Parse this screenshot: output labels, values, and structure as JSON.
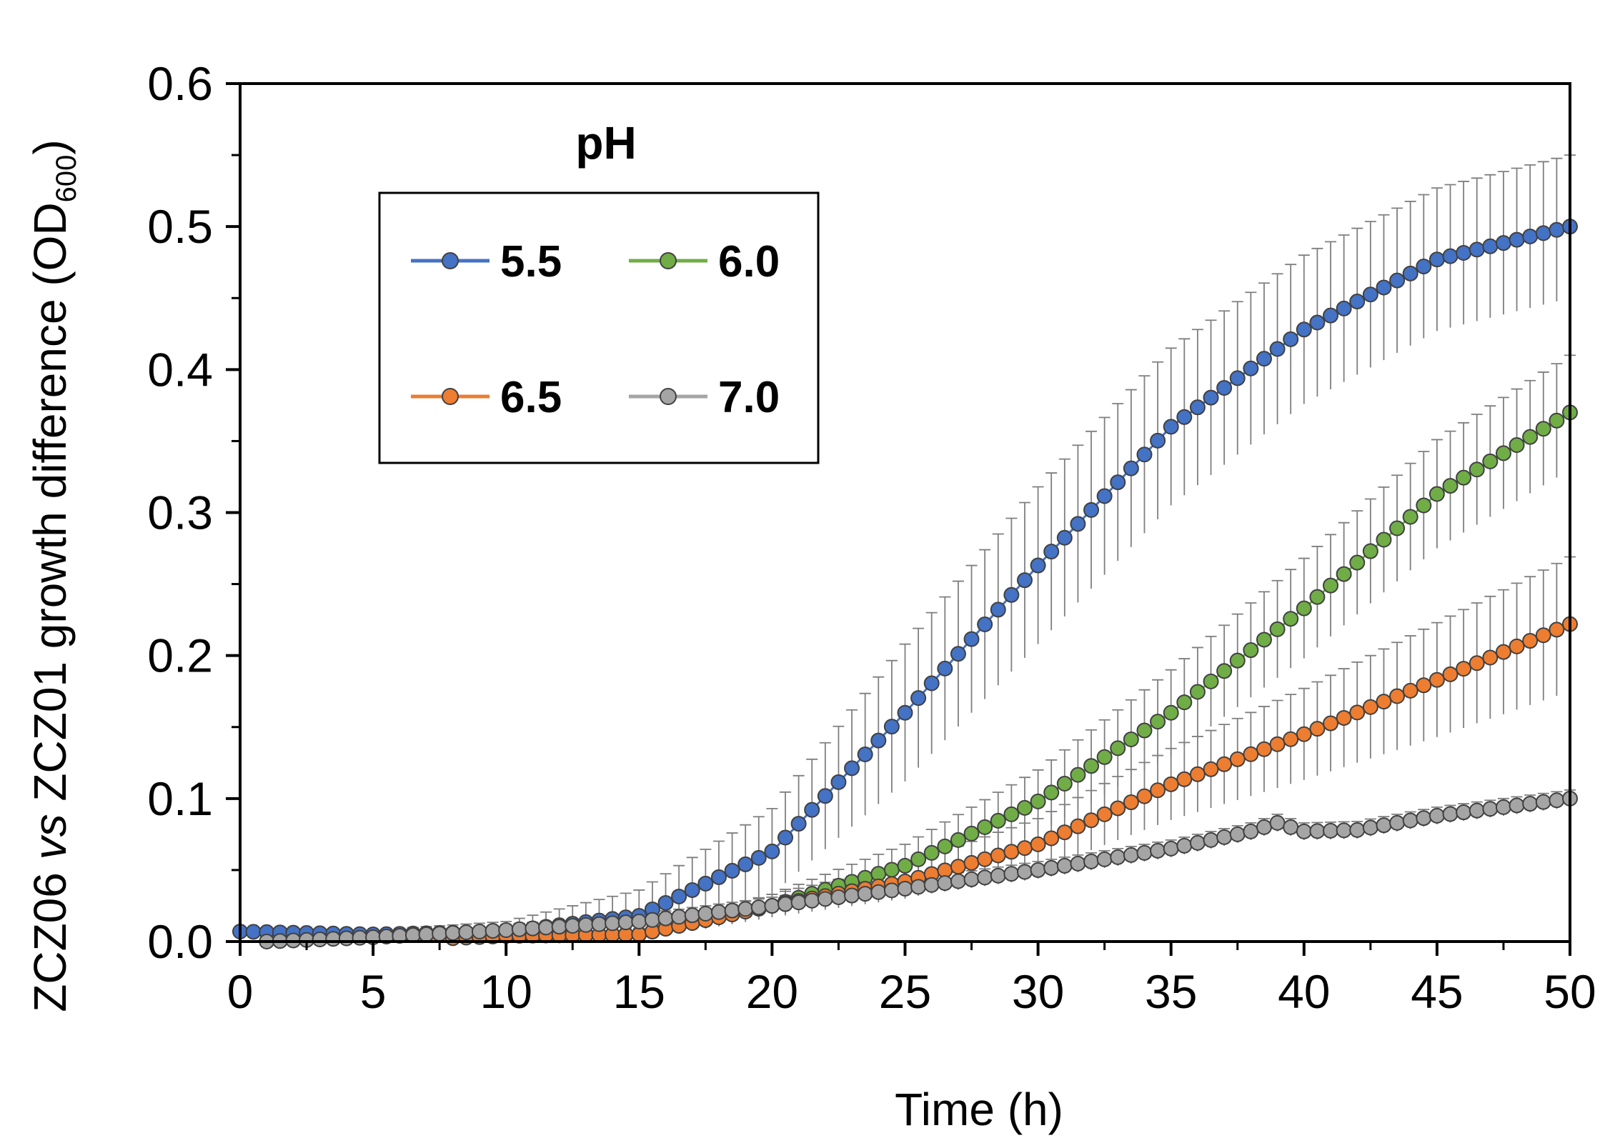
{
  "chart_data": {
    "type": "line",
    "title": "",
    "xlabel": "Time (h)",
    "ylabel": {
      "before": "ZCZ06 ",
      "italic": "vs",
      "after": " ZCZ01 growth difference (OD",
      "sub": "600",
      "close": ")"
    },
    "xlim": [
      0,
      50
    ],
    "ylim": [
      0,
      0.6
    ],
    "x_ticks": [
      "0",
      "5",
      "10",
      "15",
      "20",
      "25",
      "30",
      "35",
      "40",
      "45",
      "50"
    ],
    "y_ticks": [
      "0.0",
      "0.1",
      "0.2",
      "0.3",
      "0.4",
      "0.5",
      "0.6"
    ],
    "grid": false,
    "legend": {
      "title": "pH",
      "position": "top-left"
    },
    "series": [
      {
        "name": "5.5",
        "color": "#4472C4",
        "x": [
          0,
          5,
          10,
          15,
          20,
          25,
          30,
          35,
          40,
          45,
          50
        ],
        "y": [
          0.007,
          0.005,
          0.007,
          0.018,
          0.063,
          0.16,
          0.263,
          0.36,
          0.428,
          0.477,
          0.5
        ],
        "err": [
          0.0,
          0.003,
          0.007,
          0.018,
          0.03,
          0.048,
          0.055,
          0.055,
          0.052,
          0.05,
          0.05
        ]
      },
      {
        "name": "6.0",
        "color": "#70AD47",
        "x": [
          0,
          5,
          10,
          15,
          20,
          25,
          30,
          35,
          40,
          45,
          50
        ],
        "y": [
          0.0,
          0.0,
          0.004,
          0.005,
          0.025,
          0.053,
          0.098,
          0.16,
          0.233,
          0.313,
          0.37
        ],
        "err": [
          0.0,
          0.0,
          0.003,
          0.004,
          0.008,
          0.015,
          0.022,
          0.03,
          0.035,
          0.038,
          0.04
        ]
      },
      {
        "name": "6.5",
        "color": "#ED7D31",
        "x": [
          0,
          5,
          10,
          15,
          20,
          25,
          30,
          35,
          40,
          45,
          50
        ],
        "y": [
          0.0,
          0.0,
          0.004,
          0.005,
          0.025,
          0.042,
          0.068,
          0.11,
          0.145,
          0.183,
          0.222
        ],
        "err": [
          0.0,
          0.0,
          0.003,
          0.004,
          0.008,
          0.012,
          0.018,
          0.025,
          0.032,
          0.04,
          0.047
        ]
      },
      {
        "name": "7.0",
        "color": "#A5A5A5",
        "x": [
          0,
          1,
          5,
          10,
          15,
          20,
          25,
          30,
          35,
          38,
          39,
          40,
          42,
          45,
          50
        ],
        "y": [
          0.0,
          0.0,
          0.003,
          0.008,
          0.014,
          0.025,
          0.037,
          0.05,
          0.065,
          0.077,
          0.083,
          0.077,
          0.078,
          0.088,
          0.1
        ],
        "err": [
          0.0,
          0.0,
          0.002,
          0.004,
          0.005,
          0.006,
          0.006,
          0.006,
          0.006,
          0.006,
          0.006,
          0.006,
          0.006,
          0.006,
          0.006
        ]
      }
    ]
  }
}
